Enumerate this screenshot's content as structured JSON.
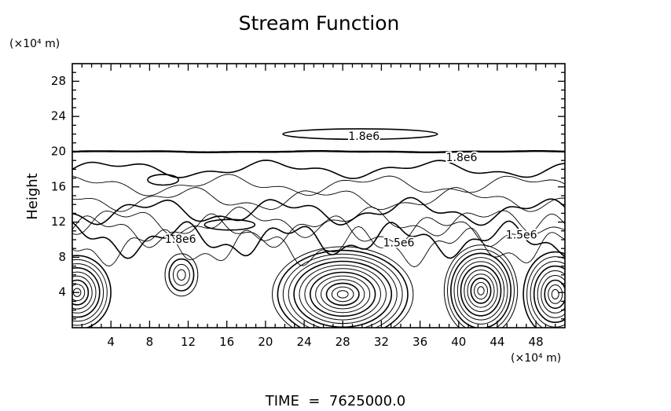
{
  "chart_data": {
    "type": "contour",
    "title": "Stream Function",
    "ylabel": "Height",
    "y_unit_label": "(×10⁴ m)",
    "x_unit_label": "(×10⁴ m)",
    "x_ticks": [
      4,
      8,
      12,
      16,
      20,
      24,
      28,
      32,
      36,
      40,
      44,
      48
    ],
    "y_ticks": [
      4,
      8,
      12,
      16,
      20,
      24,
      28
    ],
    "xlim": [
      0,
      51
    ],
    "ylim": [
      0,
      30
    ],
    "grid": false,
    "footer": "TIME  =  7625000.0",
    "contour_labels": [
      {
        "text": "1.8e6",
        "x": 30.2,
        "y": 21.7
      },
      {
        "text": "1.8e6",
        "x": 40.3,
        "y": 19.3
      },
      {
        "text": "1.8e6",
        "x": 11.2,
        "y": 10.0
      },
      {
        "text": "1.5e6",
        "x": 33.8,
        "y": 9.6
      },
      {
        "text": "1.5e6",
        "x": 46.5,
        "y": 10.5
      }
    ],
    "features": {
      "strong_layer_y": 20,
      "vortices": [
        {
          "x": 0.5,
          "y": 4.0,
          "rx": 3.5,
          "ry": 4.2,
          "n": 9
        },
        {
          "x": 11.3,
          "y": 6.0,
          "rx": 1.7,
          "ry": 2.4,
          "n": 4
        },
        {
          "x": 28.0,
          "y": 3.8,
          "rx": 7.3,
          "ry": 5.4,
          "n": 13
        },
        {
          "x": 42.3,
          "y": 4.2,
          "rx": 3.8,
          "ry": 5.2,
          "n": 11
        },
        {
          "x": 50.0,
          "y": 3.8,
          "rx": 3.3,
          "ry": 4.8,
          "n": 9
        }
      ],
      "islands": [
        {
          "x": 9.4,
          "y": 16.8,
          "rx": 1.6,
          "ry": 0.6
        },
        {
          "x": 16.3,
          "y": 11.7,
          "rx": 2.6,
          "ry": 0.6
        },
        {
          "x": 29.8,
          "y": 22.0,
          "rx": 8.0,
          "ry": 0.6
        }
      ]
    }
  }
}
